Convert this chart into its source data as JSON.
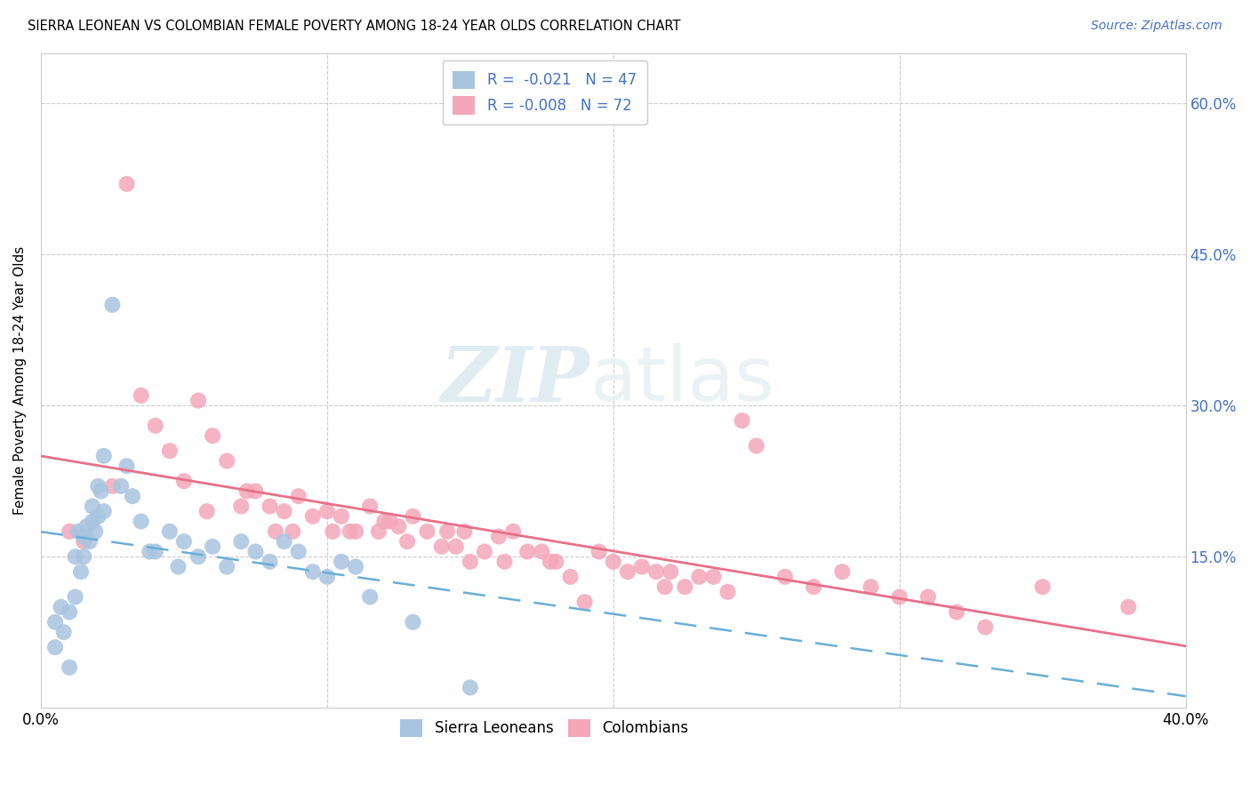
{
  "title": "SIERRA LEONEAN VS COLOMBIAN FEMALE POVERTY AMONG 18-24 YEAR OLDS CORRELATION CHART",
  "source": "Source: ZipAtlas.com",
  "ylabel": "Female Poverty Among 18-24 Year Olds",
  "xlim": [
    0.0,
    0.4
  ],
  "ylim": [
    0.0,
    0.65
  ],
  "color_sl": "#a8c4e0",
  "color_col": "#f4a7b9",
  "trendline_sl_color": "#6aaed6",
  "trendline_col_color": "#e8708a",
  "watermark_zip": "ZIP",
  "watermark_atlas": "atlas",
  "sierra_leonean_x": [
    0.005,
    0.005,
    0.007,
    0.008,
    0.01,
    0.01,
    0.012,
    0.012,
    0.013,
    0.014,
    0.015,
    0.015,
    0.016,
    0.017,
    0.018,
    0.018,
    0.019,
    0.02,
    0.02,
    0.021,
    0.022,
    0.022,
    0.025,
    0.028,
    0.03,
    0.032,
    0.035,
    0.038,
    0.04,
    0.045,
    0.048,
    0.05,
    0.055,
    0.06,
    0.065,
    0.07,
    0.075,
    0.08,
    0.085,
    0.09,
    0.095,
    0.1,
    0.105,
    0.11,
    0.115,
    0.13,
    0.15
  ],
  "sierra_leonean_y": [
    0.085,
    0.06,
    0.1,
    0.075,
    0.095,
    0.04,
    0.15,
    0.11,
    0.175,
    0.135,
    0.17,
    0.15,
    0.18,
    0.165,
    0.2,
    0.185,
    0.175,
    0.19,
    0.22,
    0.215,
    0.195,
    0.25,
    0.4,
    0.22,
    0.24,
    0.21,
    0.185,
    0.155,
    0.155,
    0.175,
    0.14,
    0.165,
    0.15,
    0.16,
    0.14,
    0.165,
    0.155,
    0.145,
    0.165,
    0.155,
    0.135,
    0.13,
    0.145,
    0.14,
    0.11,
    0.085,
    0.02
  ],
  "colombian_x": [
    0.01,
    0.015,
    0.025,
    0.03,
    0.035,
    0.04,
    0.045,
    0.05,
    0.055,
    0.058,
    0.06,
    0.065,
    0.07,
    0.072,
    0.075,
    0.08,
    0.082,
    0.085,
    0.088,
    0.09,
    0.095,
    0.1,
    0.102,
    0.105,
    0.108,
    0.11,
    0.115,
    0.118,
    0.12,
    0.122,
    0.125,
    0.128,
    0.13,
    0.135,
    0.14,
    0.142,
    0.145,
    0.148,
    0.15,
    0.155,
    0.16,
    0.162,
    0.165,
    0.17,
    0.175,
    0.178,
    0.18,
    0.185,
    0.19,
    0.195,
    0.2,
    0.205,
    0.21,
    0.215,
    0.218,
    0.22,
    0.225,
    0.23,
    0.235,
    0.24,
    0.245,
    0.25,
    0.26,
    0.27,
    0.28,
    0.29,
    0.3,
    0.31,
    0.32,
    0.33,
    0.35,
    0.38
  ],
  "colombian_y": [
    0.175,
    0.165,
    0.22,
    0.52,
    0.31,
    0.28,
    0.255,
    0.225,
    0.305,
    0.195,
    0.27,
    0.245,
    0.2,
    0.215,
    0.215,
    0.2,
    0.175,
    0.195,
    0.175,
    0.21,
    0.19,
    0.195,
    0.175,
    0.19,
    0.175,
    0.175,
    0.2,
    0.175,
    0.185,
    0.185,
    0.18,
    0.165,
    0.19,
    0.175,
    0.16,
    0.175,
    0.16,
    0.175,
    0.145,
    0.155,
    0.17,
    0.145,
    0.175,
    0.155,
    0.155,
    0.145,
    0.145,
    0.13,
    0.105,
    0.155,
    0.145,
    0.135,
    0.14,
    0.135,
    0.12,
    0.135,
    0.12,
    0.13,
    0.13,
    0.115,
    0.285,
    0.26,
    0.13,
    0.12,
    0.135,
    0.12,
    0.11,
    0.11,
    0.095,
    0.08,
    0.12,
    0.1
  ]
}
